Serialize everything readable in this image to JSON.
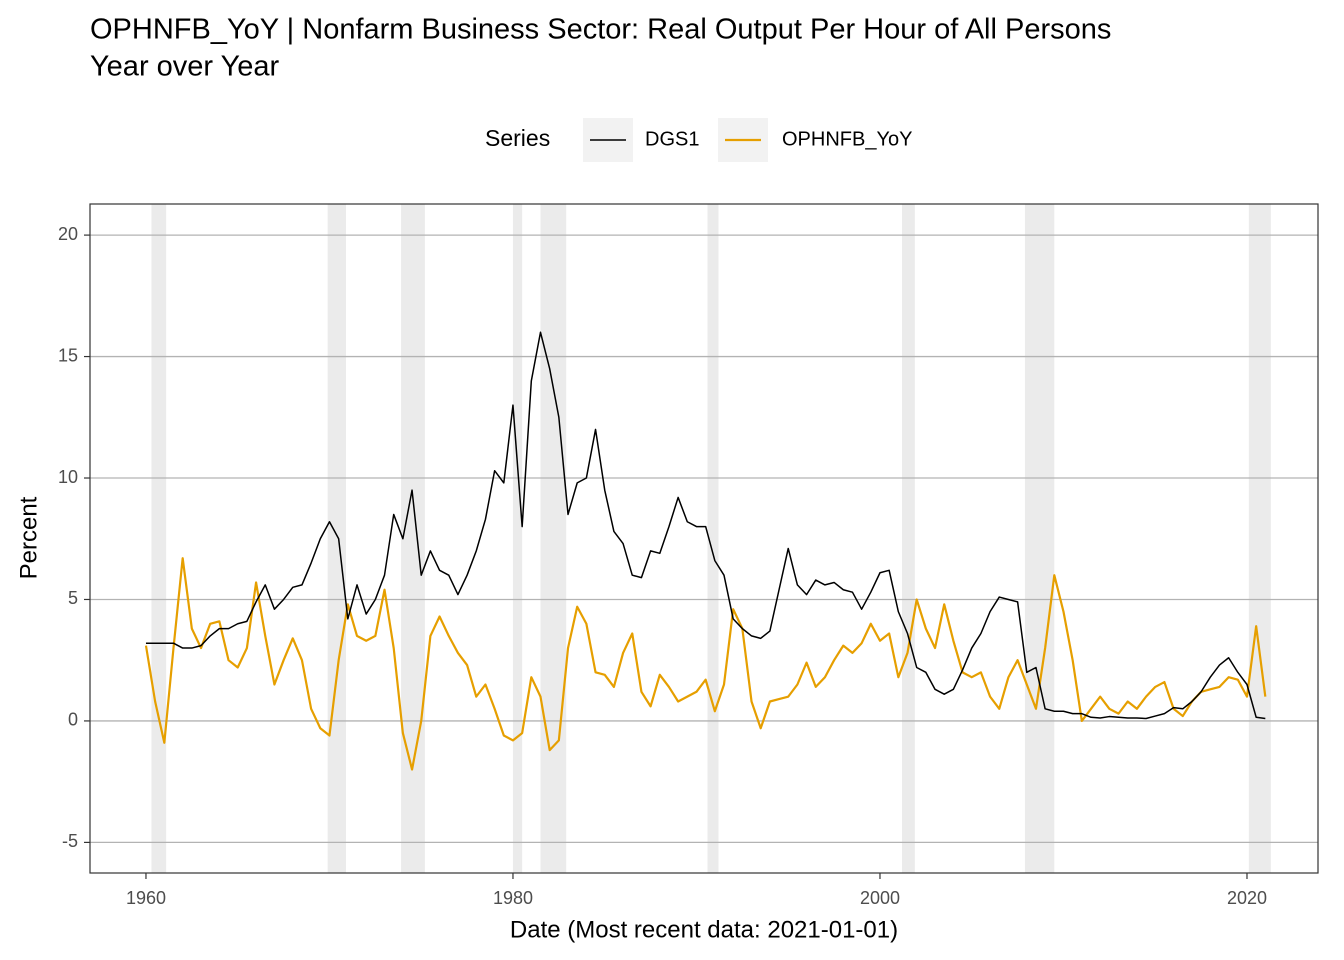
{
  "chart_data": {
    "type": "line",
    "title": [
      "OPHNFB_YoY | Nonfarm Business Sector: Real Output Per Hour of All Persons",
      "Year over Year"
    ],
    "x_label": "Date (Most recent data: 2021-01-01)",
    "y_label": "Percent",
    "legend_title": "Series",
    "legend_position": "top",
    "grid": true,
    "xlim": [
      1956.95,
      2023.87
    ],
    "ylim": [
      -6.26,
      21.28
    ],
    "xticks": [
      1960,
      1980,
      2000,
      2020
    ],
    "yticks": [
      -5,
      0,
      5,
      10,
      15,
      20
    ],
    "recessions": [
      [
        1960.3,
        1961.1
      ],
      [
        1969.9,
        1970.9
      ],
      [
        1973.9,
        1975.2
      ],
      [
        1980.0,
        1980.5
      ],
      [
        1981.5,
        1982.9
      ],
      [
        1990.6,
        1991.2
      ],
      [
        2001.2,
        2001.9
      ],
      [
        2007.9,
        2009.5
      ],
      [
        2020.1,
        2021.3
      ]
    ],
    "recession_color": "#ebebeb",
    "x": [
      1960.0,
      1960.5,
      1961.0,
      1961.5,
      1962.0,
      1962.5,
      1963.0,
      1963.5,
      1964.0,
      1964.5,
      1965.0,
      1965.5,
      1966.0,
      1966.5,
      1967.0,
      1967.5,
      1968.0,
      1968.5,
      1969.0,
      1969.5,
      1970.0,
      1970.5,
      1971.0,
      1971.5,
      1972.0,
      1972.5,
      1973.0,
      1973.5,
      1974.0,
      1974.5,
      1975.0,
      1975.5,
      1976.0,
      1976.5,
      1977.0,
      1977.5,
      1978.0,
      1978.5,
      1979.0,
      1979.5,
      1980.0,
      1980.5,
      1981.0,
      1981.5,
      1982.0,
      1982.5,
      1983.0,
      1983.5,
      1984.0,
      1984.5,
      1985.0,
      1985.5,
      1986.0,
      1986.5,
      1987.0,
      1987.5,
      1988.0,
      1988.5,
      1989.0,
      1989.5,
      1990.0,
      1990.5,
      1991.0,
      1991.5,
      1992.0,
      1992.5,
      1993.0,
      1993.5,
      1994.0,
      1994.5,
      1995.0,
      1995.5,
      1996.0,
      1996.5,
      1997.0,
      1997.5,
      1998.0,
      1998.5,
      1999.0,
      1999.5,
      2000.0,
      2000.5,
      2001.0,
      2001.5,
      2002.0,
      2002.5,
      2003.0,
      2003.5,
      2004.0,
      2004.5,
      2005.0,
      2005.5,
      2006.0,
      2006.5,
      2007.0,
      2007.5,
      2008.0,
      2008.5,
      2009.0,
      2009.5,
      2010.0,
      2010.5,
      2011.0,
      2011.5,
      2012.0,
      2012.5,
      2013.0,
      2013.5,
      2014.0,
      2014.5,
      2015.0,
      2015.5,
      2016.0,
      2016.5,
      2017.0,
      2017.5,
      2018.0,
      2018.5,
      2019.0,
      2019.5,
      2020.0,
      2020.5,
      2021.0
    ],
    "series": [
      {
        "name": "DGS1",
        "color": "#000000",
        "width": 1.5,
        "values": [
          3.2,
          3.2,
          3.2,
          3.2,
          3.0,
          3.0,
          3.1,
          3.5,
          3.8,
          3.8,
          4.0,
          4.1,
          4.9,
          5.6,
          4.6,
          5.0,
          5.5,
          5.6,
          6.5,
          7.5,
          8.2,
          7.5,
          4.2,
          5.6,
          4.4,
          5.0,
          6.0,
          8.5,
          7.5,
          9.5,
          6.0,
          7.0,
          6.2,
          6.0,
          5.2,
          6.0,
          7.0,
          8.3,
          10.3,
          9.8,
          13.0,
          8.0,
          14.0,
          16.0,
          14.5,
          12.5,
          8.5,
          9.8,
          10.0,
          12.0,
          9.5,
          7.8,
          7.3,
          6.0,
          5.9,
          7.0,
          6.9,
          8.0,
          9.2,
          8.2,
          8.0,
          8.0,
          6.6,
          6.0,
          4.2,
          3.8,
          3.5,
          3.4,
          3.7,
          5.4,
          7.1,
          5.6,
          5.2,
          5.8,
          5.6,
          5.7,
          5.4,
          5.3,
          4.6,
          5.3,
          6.1,
          6.2,
          4.5,
          3.6,
          2.2,
          2.0,
          1.3,
          1.1,
          1.3,
          2.1,
          3.0,
          3.6,
          4.5,
          5.1,
          5.0,
          4.9,
          2.0,
          2.2,
          0.5,
          0.4,
          0.4,
          0.3,
          0.3,
          0.15,
          0.12,
          0.18,
          0.15,
          0.12,
          0.12,
          0.1,
          0.2,
          0.3,
          0.55,
          0.5,
          0.8,
          1.2,
          1.8,
          2.3,
          2.6,
          2.0,
          1.5,
          0.15,
          0.1
        ]
      },
      {
        "name": "OPHNFB_YoY",
        "color": "#e69f00",
        "width": 2.2,
        "values": [
          3.1,
          0.8,
          -0.9,
          3.0,
          6.7,
          3.8,
          3.0,
          4.0,
          4.1,
          2.5,
          2.2,
          3.0,
          5.7,
          3.5,
          1.5,
          2.5,
          3.4,
          2.5,
          0.5,
          -0.3,
          -0.6,
          2.5,
          4.8,
          3.5,
          3.3,
          3.5,
          5.4,
          3.0,
          -0.5,
          -2.0,
          0.0,
          3.5,
          4.3,
          3.5,
          2.8,
          2.3,
          1.0,
          1.5,
          0.5,
          -0.6,
          -0.8,
          -0.5,
          1.8,
          1.0,
          -1.2,
          -0.8,
          3.0,
          4.7,
          4.0,
          2.0,
          1.9,
          1.4,
          2.8,
          3.6,
          1.2,
          0.6,
          1.9,
          1.4,
          0.8,
          1.0,
          1.2,
          1.7,
          0.4,
          1.5,
          4.6,
          3.8,
          0.8,
          -0.3,
          0.8,
          0.9,
          1.0,
          1.5,
          2.4,
          1.4,
          1.8,
          2.5,
          3.1,
          2.8,
          3.2,
          4.0,
          3.3,
          3.6,
          1.8,
          2.8,
          5.0,
          3.8,
          3.0,
          4.8,
          3.3,
          2.0,
          1.8,
          2.0,
          1.0,
          0.5,
          1.8,
          2.5,
          1.5,
          0.5,
          3.0,
          6.0,
          4.5,
          2.5,
          0.0,
          0.5,
          1.0,
          0.5,
          0.3,
          0.8,
          0.5,
          1.0,
          1.4,
          1.6,
          0.5,
          0.2,
          0.8,
          1.2,
          1.3,
          1.4,
          1.8,
          1.7,
          1.0,
          3.9,
          1.0
        ]
      }
    ]
  }
}
